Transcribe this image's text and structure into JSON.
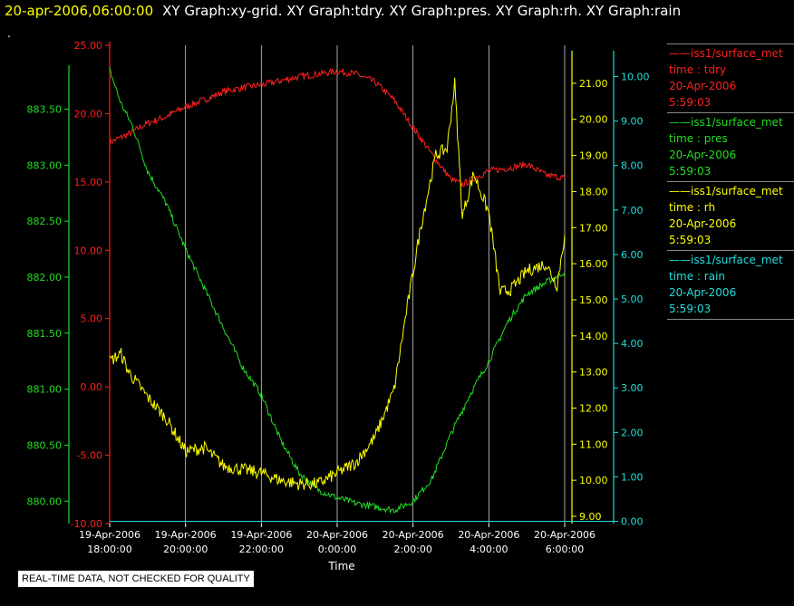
{
  "header": {
    "timestamp": "20-apr-2006,06:00:00",
    "graphs": "XY Graph:xy-grid.  XY Graph:tdry.  XY Graph:pres.  XY Graph:rh.  XY Graph:rain",
    "dot": "."
  },
  "footer": {
    "quality_note": "REAL-TIME DATA, NOT CHECKED FOR QUALITY"
  },
  "legend": [
    {
      "name": "iss1/surface_met",
      "field": "time : tdry",
      "date": "20-Apr-2006",
      "time": "5:59:03",
      "color": "#ff2020"
    },
    {
      "name": "iss1/surface_met",
      "field": "time : pres",
      "date": "20-Apr-2006",
      "time": "5:59:03",
      "color": "#22dd22"
    },
    {
      "name": "iss1/surface_met",
      "field": "time : rh",
      "date": "20-Apr-2006",
      "time": "5:59:03",
      "color": "#ffff00"
    },
    {
      "name": "iss1/surface_met",
      "field": "time : rain",
      "date": "20-Apr-2006",
      "time": "5:59:03",
      "color": "#22dddd"
    }
  ],
  "chart_data": {
    "type": "line",
    "xlabel": "Time",
    "x_ticks": [
      {
        "h": 0,
        "date": "19-Apr-2006",
        "time": "18:00:00"
      },
      {
        "h": 2,
        "date": "19-Apr-2006",
        "time": "20:00:00"
      },
      {
        "h": 4,
        "date": "19-Apr-2006",
        "time": "22:00:00"
      },
      {
        "h": 6,
        "date": "20-Apr-2006",
        "time": "0:00:00"
      },
      {
        "h": 8,
        "date": "20-Apr-2006",
        "time": "2:00:00"
      },
      {
        "h": 10,
        "date": "20-Apr-2006",
        "time": "4:00:00"
      },
      {
        "h": 12,
        "date": "20-Apr-2006",
        "time": "6:00:00"
      }
    ],
    "xlim": [
      0,
      12
    ],
    "grid": true,
    "axes": [
      {
        "id": "pres",
        "color": "#22dd22",
        "ylim": [
          879.8,
          883.86
        ],
        "ticks": [
          "880.00",
          "880.50",
          "881.00",
          "881.50",
          "882.00",
          "882.50",
          "883.00",
          "883.50"
        ]
      },
      {
        "id": "tdry",
        "color": "#ff2020",
        "ylim": [
          -10,
          25
        ],
        "ticks": [
          "-10.00",
          "-5.00",
          "0.00",
          "5.00",
          "10.00",
          "15.00",
          "20.00",
          "25.00"
        ]
      },
      {
        "id": "rh",
        "color": "#ffff00",
        "ylim": [
          8.8,
          21.8
        ],
        "ticks": [
          "9.00",
          "10.00",
          "11.00",
          "12.00",
          "13.00",
          "14.00",
          "15.00",
          "16.00",
          "17.00",
          "18.00",
          "19.00",
          "20.00",
          "21.00"
        ]
      },
      {
        "id": "rain",
        "color": "#22dddd",
        "ylim": [
          -0.05,
          10.5
        ],
        "ticks": [
          "0.00",
          "1.00",
          "2.00",
          "3.00",
          "4.00",
          "5.00",
          "6.00",
          "7.00",
          "8.00",
          "9.00",
          "10.00"
        ]
      }
    ],
    "series": [
      {
        "id": "tdry",
        "axis": "tdry",
        "color": "#ff2020",
        "noise": 0.25,
        "points": [
          [
            0,
            17.9
          ],
          [
            0.5,
            18.5
          ],
          [
            1,
            19.3
          ],
          [
            1.5,
            19.8
          ],
          [
            2,
            20.5
          ],
          [
            2.5,
            21
          ],
          [
            3,
            21.6
          ],
          [
            3.5,
            21.9
          ],
          [
            4,
            22.1
          ],
          [
            4.5,
            22.4
          ],
          [
            5,
            22.7
          ],
          [
            5.5,
            22.9
          ],
          [
            6,
            23.1
          ],
          [
            6.5,
            22.9
          ],
          [
            7,
            22.3
          ],
          [
            7.5,
            21
          ],
          [
            8,
            19
          ],
          [
            8.5,
            17
          ],
          [
            9,
            15.2
          ],
          [
            9.3,
            14.8
          ],
          [
            9.7,
            15.4
          ],
          [
            10,
            15.8
          ],
          [
            10.5,
            16
          ],
          [
            11,
            16.3
          ],
          [
            11.5,
            15.5
          ],
          [
            12,
            15.3
          ]
        ]
      },
      {
        "id": "pres",
        "axis": "pres",
        "color": "#22dd22",
        "noise": 0.03,
        "points": [
          [
            0,
            883.85
          ],
          [
            0.3,
            883.55
          ],
          [
            0.6,
            883.35
          ],
          [
            1,
            882.95
          ],
          [
            1.5,
            882.65
          ],
          [
            2,
            882.25
          ],
          [
            2.5,
            881.9
          ],
          [
            3,
            881.55
          ],
          [
            3.5,
            881.2
          ],
          [
            4,
            880.95
          ],
          [
            4.5,
            880.55
          ],
          [
            5,
            880.25
          ],
          [
            5.5,
            880.1
          ],
          [
            6,
            880.03
          ],
          [
            6.5,
            879.98
          ],
          [
            7,
            879.95
          ],
          [
            7.5,
            879.92
          ],
          [
            8,
            880.0
          ],
          [
            8.5,
            880.2
          ],
          [
            9,
            880.6
          ],
          [
            9.5,
            880.95
          ],
          [
            10,
            881.25
          ],
          [
            10.5,
            881.6
          ],
          [
            11,
            881.85
          ],
          [
            11.5,
            881.95
          ],
          [
            12,
            882.05
          ]
        ]
      },
      {
        "id": "rh",
        "axis": "rh",
        "color": "#ffff00",
        "noise": 0.18,
        "points": [
          [
            0,
            13.3
          ],
          [
            0.3,
            13.5
          ],
          [
            0.5,
            13.0
          ],
          [
            1,
            12.3
          ],
          [
            1.5,
            11.7
          ],
          [
            2,
            10.8
          ],
          [
            2.5,
            10.9
          ],
          [
            3,
            10.4
          ],
          [
            3.5,
            10.3
          ],
          [
            4,
            10.2
          ],
          [
            4.5,
            10.0
          ],
          [
            5,
            9.9
          ],
          [
            5.5,
            9.9
          ],
          [
            6,
            10.2
          ],
          [
            6.5,
            10.5
          ],
          [
            7,
            11.2
          ],
          [
            7.5,
            12.5
          ],
          [
            7.8,
            14.5
          ],
          [
            8.2,
            17
          ],
          [
            8.6,
            19
          ],
          [
            8.9,
            19.2
          ],
          [
            9.1,
            21.0
          ],
          [
            9.3,
            17.3
          ],
          [
            9.6,
            18.5
          ],
          [
            10,
            17.4
          ],
          [
            10.3,
            15.2
          ],
          [
            10.6,
            15.3
          ],
          [
            11,
            15.8
          ],
          [
            11.5,
            16.0
          ],
          [
            11.8,
            15.4
          ],
          [
            12,
            16.8
          ]
        ]
      },
      {
        "id": "rain",
        "axis": "rain",
        "color": "#22dddd",
        "noise": 0,
        "points": [
          [
            0,
            0
          ],
          [
            12,
            0
          ]
        ]
      }
    ]
  }
}
